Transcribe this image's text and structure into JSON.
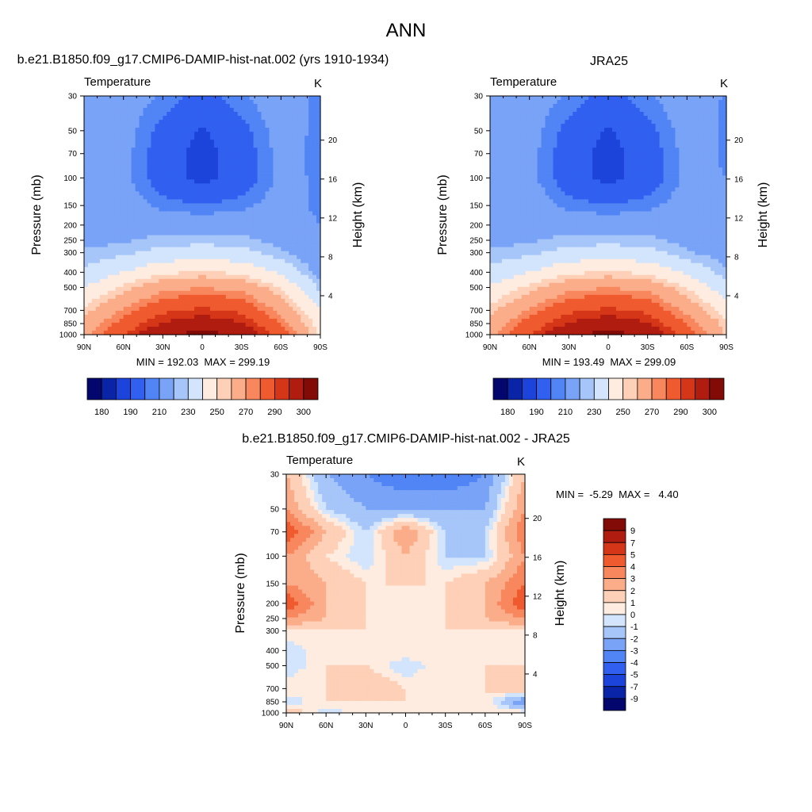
{
  "title": "ANN",
  "panels": [
    {
      "title": "b.e21.B1850.f09_g17.CMIP6-DAMIP-hist-nat.002 (yrs 1910-1934)",
      "variable": "Temperature",
      "units": "K",
      "minmax": "MIN = 192.03  MAX = 299.19"
    },
    {
      "title": "JRA25",
      "variable": "Temperature",
      "units": "K",
      "minmax": "MIN = 193.49  MAX = 299.09"
    },
    {
      "title": "b.e21.B1850.f09_g17.CMIP6-DAMIP-hist-nat.002 - JRA25",
      "variable": "Temperature",
      "units": "K",
      "minmax": "MIN =  -5.29  MAX =   4.40"
    }
  ],
  "axes": {
    "ylabel_left": "Pressure (mb)",
    "ylabel_right": "Height (km)",
    "x_ticks": [
      "90N",
      "60N",
      "30N",
      "0",
      "30S",
      "60S",
      "90S"
    ],
    "pressure_ticks": [
      "30",
      "50",
      "70",
      "100",
      "150",
      "200",
      "250",
      "300",
      "400",
      "500",
      "700",
      "850",
      "1000"
    ],
    "height_ticks": [
      "20",
      "16",
      "12",
      "8",
      "4"
    ]
  },
  "colorbar_abs": {
    "colors": [
      "#03076d",
      "#0a24a8",
      "#1c44da",
      "#3160f0",
      "#5184f5",
      "#79a3f7",
      "#a6c5f9",
      "#d3e5fc",
      "#ffece0",
      "#fdd0b7",
      "#fbad8a",
      "#f8875e",
      "#ef5a2e",
      "#d63618",
      "#b01d10",
      "#820b08"
    ],
    "labels": [
      "180",
      "190",
      "210",
      "230",
      "250",
      "270",
      "290",
      "300"
    ]
  },
  "colorbar_diff": {
    "colors": [
      "#820b08",
      "#b01d10",
      "#d63618",
      "#ef5a2e",
      "#f8875e",
      "#fbad8a",
      "#fdd0b7",
      "#ffece0",
      "#d3e5fc",
      "#a6c5f9",
      "#79a3f7",
      "#5184f5",
      "#3160f0",
      "#1c44da",
      "#0a24a8",
      "#03076d"
    ],
    "labels": [
      "9",
      "7",
      "5",
      "4",
      "3",
      "2",
      "1",
      "0",
      "-1",
      "-2",
      "-3",
      "-4",
      "-5",
      "-7",
      "-9"
    ]
  },
  "chart_data": [
    {
      "type": "heatmap",
      "title": "b.e21.B1850.f09_g17.CMIP6-DAMIP-hist-nat.002 (yrs 1910-1934)",
      "variable": "Temperature",
      "units": "K",
      "x": [
        "90N",
        "60N",
        "30N",
        "0",
        "30S",
        "60S",
        "90S"
      ],
      "y_pressure_mb": [
        30,
        50,
        70,
        100,
        150,
        200,
        250,
        300,
        400,
        500,
        700,
        850,
        1000
      ],
      "values": [
        [
          221,
          220,
          214,
          207,
          214,
          221,
          212
        ],
        [
          220,
          219,
          207,
          199,
          207,
          219,
          213
        ],
        [
          220,
          218,
          205,
          196,
          205,
          218,
          213
        ],
        [
          219,
          217,
          205,
          197,
          205,
          217,
          214
        ],
        [
          221,
          220,
          213,
          210,
          213,
          219,
          213
        ],
        [
          222,
          222,
          221,
          221,
          221,
          220,
          215
        ],
        [
          223,
          224,
          227,
          228,
          227,
          222,
          216
        ],
        [
          226,
          228,
          233,
          234,
          233,
          226,
          218
        ],
        [
          231,
          240,
          248,
          251,
          248,
          238,
          222
        ],
        [
          240,
          252,
          262,
          265,
          262,
          250,
          228
        ],
        [
          252,
          266,
          278,
          282,
          278,
          262,
          240
        ],
        [
          258,
          274,
          286,
          290,
          286,
          270,
          245
        ],
        [
          262,
          280,
          294,
          298,
          294,
          276,
          248
        ]
      ],
      "min": 192.03,
      "max": 299.19
    },
    {
      "type": "heatmap",
      "title": "JRA25",
      "variable": "Temperature",
      "units": "K",
      "x": [
        "90N",
        "60N",
        "30N",
        "0",
        "30S",
        "60S",
        "90S"
      ],
      "y_pressure_mb": [
        30,
        50,
        70,
        100,
        150,
        200,
        250,
        300,
        400,
        500,
        700,
        850,
        1000
      ],
      "values": [
        [
          221,
          220,
          214,
          207,
          214,
          221,
          214
        ],
        [
          220,
          219,
          207,
          199,
          207,
          219,
          214
        ],
        [
          220,
          218,
          205,
          196,
          205,
          218,
          214
        ],
        [
          221,
          217,
          205,
          197,
          205,
          217,
          215
        ],
        [
          225,
          221,
          213,
          210,
          213,
          219,
          216
        ],
        [
          223,
          222,
          221,
          221,
          221,
          220,
          218
        ],
        [
          223,
          224,
          227,
          228,
          227,
          222,
          219
        ],
        [
          226,
          228,
          233,
          234,
          233,
          226,
          221
        ],
        [
          232,
          240,
          248,
          251,
          248,
          238,
          226
        ],
        [
          241,
          252,
          262,
          265,
          262,
          250,
          233
        ],
        [
          253,
          266,
          278,
          282,
          278,
          262,
          246
        ],
        [
          259,
          274,
          286,
          290,
          286,
          270,
          252
        ],
        [
          263,
          280,
          294,
          298,
          294,
          276,
          254
        ]
      ],
      "min": 193.49,
      "max": 299.09
    },
    {
      "type": "heatmap",
      "title": "b.e21.B1850.f09_g17.CMIP6-DAMIP-hist-nat.002 - JRA25",
      "variable": "Temperature",
      "units": "K",
      "x": [
        "90N",
        "60N",
        "30N",
        "0",
        "30S",
        "60S",
        "90S"
      ],
      "y_pressure_mb": [
        30,
        50,
        70,
        100,
        150,
        200,
        250,
        300,
        400,
        500,
        700,
        850,
        1000
      ],
      "values": [
        [
          -1.5,
          1.5,
          2.5,
          3.5,
          3.5,
          2.5,
          -1.5
        ],
        [
          -2.5,
          0.5,
          1.5,
          1.5,
          1.5,
          1.5,
          -2.5
        ],
        [
          -4.5,
          -1.5,
          0.5,
          -2.5,
          0.5,
          0.5,
          -3.5
        ],
        [
          -2.5,
          -0.5,
          0.5,
          -1.5,
          0.5,
          0.5,
          -2.5
        ],
        [
          -2.5,
          -1.5,
          -0.5,
          -0.5,
          -0.5,
          -1.5,
          -3.5
        ],
        [
          -4.5,
          -1.5,
          -0.5,
          -0.5,
          -0.5,
          -1.5,
          -4.5
        ],
        [
          -2.5,
          -1.5,
          -0.5,
          -0.5,
          -0.5,
          -1.5,
          -2.5
        ],
        [
          -0.5,
          -0.5,
          -0.5,
          -0.5,
          -0.5,
          -0.5,
          -0.5
        ],
        [
          0.5,
          -0.5,
          -0.5,
          -0.5,
          -0.5,
          -0.5,
          -0.5
        ],
        [
          0.5,
          -0.5,
          -0.5,
          0.5,
          -0.5,
          -0.5,
          -0.5
        ],
        [
          -0.5,
          -0.5,
          -1.5,
          -0.5,
          -0.5,
          -0.5,
          -1.5
        ],
        [
          0.5,
          -0.5,
          -0.5,
          -0.5,
          -0.5,
          -0.5,
          2.5
        ],
        [
          -1.5,
          0.5,
          -0.5,
          -0.5,
          -0.5,
          -0.5,
          -0.5
        ]
      ],
      "min": -5.29,
      "max": 4.4
    }
  ]
}
